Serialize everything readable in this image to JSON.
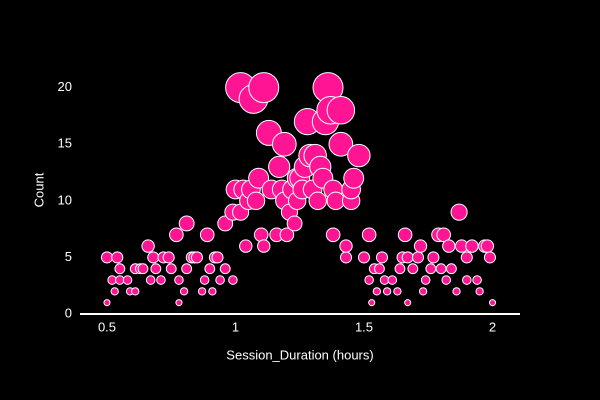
{
  "chart_data": {
    "type": "bubble",
    "x_label": "Session_Duration (hours)",
    "y_label": "Count",
    "xlim": [
      0.395,
      2.107
    ],
    "ylim": [
      0,
      22
    ],
    "xticks": [
      0.5,
      1,
      1.5,
      2
    ],
    "yticks": [
      0,
      5,
      10,
      15,
      20
    ],
    "grid": false,
    "zero_line": true,
    "series": [
      {
        "color": "#ff1493",
        "x": [
          0.5,
          0.5,
          0.52,
          0.53,
          0.54,
          0.55,
          0.55,
          0.58,
          0.59,
          0.61,
          0.61,
          0.63,
          0.64,
          0.66,
          0.67,
          0.68,
          0.69,
          0.71,
          0.72,
          0.74,
          0.75,
          0.77,
          0.78,
          0.78,
          0.8,
          0.81,
          0.81,
          0.83,
          0.84,
          0.85,
          0.87,
          0.88,
          0.89,
          0.9,
          0.91,
          0.92,
          0.93,
          0.94,
          0.96,
          0.96,
          0.99,
          0.99,
          1.0,
          1.02,
          1.02,
          1.03,
          1.04,
          1.05,
          1.06,
          1.07,
          1.08,
          1.09,
          1.1,
          1.11,
          1.11,
          1.13,
          1.14,
          1.16,
          1.17,
          1.18,
          1.19,
          1.19,
          1.2,
          1.21,
          1.22,
          1.23,
          1.24,
          1.24,
          1.25,
          1.26,
          1.27,
          1.28,
          1.29,
          1.3,
          1.31,
          1.32,
          1.33,
          1.34,
          1.35,
          1.36,
          1.37,
          1.38,
          1.38,
          1.39,
          1.41,
          1.41,
          1.43,
          1.43,
          1.45,
          1.45,
          1.46,
          1.48,
          1.5,
          1.52,
          1.52,
          1.53,
          1.54,
          1.55,
          1.56,
          1.57,
          1.58,
          1.59,
          1.61,
          1.63,
          1.64,
          1.65,
          1.66,
          1.67,
          1.67,
          1.69,
          1.71,
          1.72,
          1.73,
          1.74,
          1.76,
          1.77,
          1.79,
          1.8,
          1.81,
          1.82,
          1.83,
          1.84,
          1.86,
          1.87,
          1.88,
          1.9,
          1.9,
          1.92,
          1.94,
          1.95,
          1.97,
          1.98,
          1.99,
          2.0
        ],
        "values": [
          5,
          1,
          3,
          2,
          5,
          4,
          3,
          3,
          2,
          2,
          4,
          4,
          4,
          6,
          3,
          5,
          4,
          3,
          5,
          5,
          4,
          7,
          1,
          3,
          2,
          8,
          4,
          5,
          5,
          5,
          2,
          3,
          7,
          4,
          2,
          5,
          5,
          3,
          4,
          8,
          3,
          9,
          11,
          20,
          9,
          11,
          6,
          10,
          11,
          19,
          10,
          12,
          7,
          6,
          20,
          16,
          11,
          7,
          13,
          11,
          15,
          10,
          7,
          9,
          11,
          8,
          12,
          10,
          12,
          11,
          13,
          17,
          14,
          11,
          14,
          10,
          13,
          12,
          17,
          20,
          18,
          11,
          7,
          10,
          15,
          18,
          5,
          6,
          10,
          11,
          12,
          14,
          5,
          7,
          3,
          1,
          4,
          2,
          4,
          5,
          3,
          2,
          3,
          2,
          4,
          5,
          7,
          5,
          1,
          4,
          5,
          6,
          2,
          3,
          4,
          5,
          7,
          4,
          7,
          3,
          6,
          4,
          2,
          9,
          6,
          5,
          3,
          6,
          3,
          2,
          6,
          6,
          5,
          1
        ]
      }
    ]
  }
}
